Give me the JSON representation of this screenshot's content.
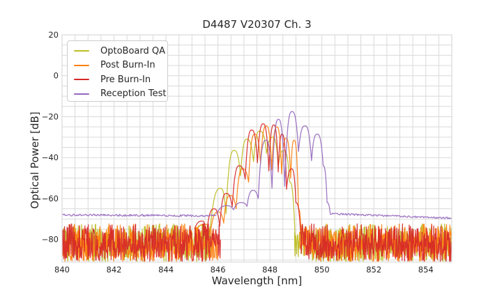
{
  "chart_data": {
    "type": "line",
    "title": "D4487 V20307 Ch. 3",
    "xlabel": "Wavelength [nm]",
    "ylabel": "Optical Power [dB]",
    "xlim": [
      840,
      855
    ],
    "ylim": [
      -91,
      20
    ],
    "x_major_ticks": [
      840,
      842,
      844,
      846,
      848,
      850,
      852,
      854
    ],
    "x_minor_step": 0.5,
    "y_major_ticks": [
      20,
      0,
      -20,
      -40,
      -60,
      -80
    ],
    "y_minor_step": 5,
    "grid": true,
    "grid_color": "#d9d9d9",
    "background": "#ffffff",
    "legend_position": "upper-left",
    "series": [
      {
        "name": "OptoBoard QA",
        "color": "#bcbd22",
        "segments": [
          {
            "type": "noise",
            "x0": 840,
            "x1": 845.75,
            "top": -74.5,
            "bottom": -91
          },
          {
            "type": "modes",
            "points": [
              [
                845.15,
                -76
              ],
              [
                845.38,
                -73
              ],
              [
                845.66,
                -81.5
              ],
              [
                846.1,
                -55
              ],
              [
                846.31,
                -67.5
              ],
              [
                846.62,
                -36.5
              ],
              [
                846.87,
                -49
              ],
              [
                847.11,
                -31
              ],
              [
                847.37,
                -42
              ],
              [
                847.61,
                -27
              ],
              [
                847.87,
                -38
              ],
              [
                848.11,
                -30
              ],
              [
                848.32,
                -44
              ],
              [
                848.54,
                -36.5
              ],
              [
                848.76,
                -52
              ],
              [
                848.97,
                -80
              ]
            ]
          },
          {
            "type": "noise",
            "x0": 848.95,
            "x1": 855,
            "top": -74.5,
            "bottom": -91
          }
        ]
      },
      {
        "name": "Post Burn-In",
        "color": "#ff7f0e",
        "segments": [
          {
            "type": "noise",
            "x0": 840,
            "x1": 846.0,
            "top": -74.5,
            "bottom": -91
          },
          {
            "type": "modes",
            "points": [
              [
                845.2,
                -75
              ],
              [
                845.5,
                -72.5
              ],
              [
                845.7,
                -78
              ],
              [
                846.0,
                -66.5
              ],
              [
                846.22,
                -72
              ],
              [
                846.47,
                -58.5
              ],
              [
                846.7,
                -65
              ],
              [
                846.95,
                -45.5
              ],
              [
                847.18,
                -52
              ],
              [
                847.42,
                -28.5
              ],
              [
                847.64,
                -43
              ],
              [
                847.86,
                -24.5
              ],
              [
                848.07,
                -46
              ],
              [
                848.27,
                -25
              ],
              [
                848.45,
                -48
              ],
              [
                848.62,
                -30.5
              ],
              [
                848.8,
                -50
              ],
              [
                848.93,
                -31.5
              ],
              [
                849.1,
                -65
              ],
              [
                849.2,
                -78
              ]
            ]
          },
          {
            "type": "noise",
            "x0": 849.15,
            "x1": 855,
            "top": -74.5,
            "bottom": -91
          }
        ]
      },
      {
        "name": "Pre Burn-In",
        "color": "#d62728",
        "segments": [
          {
            "type": "noise",
            "x0": 840,
            "x1": 846.1,
            "top": -74.5,
            "bottom": -91
          },
          {
            "type": "modes",
            "points": [
              [
                845.1,
                -75
              ],
              [
                845.39,
                -71
              ],
              [
                845.56,
                -77.5
              ],
              [
                845.85,
                -65
              ],
              [
                846.07,
                -73.5
              ],
              [
                846.32,
                -57.5
              ],
              [
                846.55,
                -64
              ],
              [
                846.82,
                -44
              ],
              [
                847.05,
                -50.5
              ],
              [
                847.3,
                -26.5
              ],
              [
                847.52,
                -42.5
              ],
              [
                847.74,
                -23.5
              ],
              [
                847.96,
                -46.5
              ],
              [
                848.15,
                -24
              ],
              [
                848.32,
                -47
              ],
              [
                848.47,
                -28.5
              ],
              [
                848.64,
                -55.5
              ],
              [
                848.84,
                -45.5
              ],
              [
                849.0,
                -62
              ],
              [
                849.18,
                -77
              ]
            ]
          },
          {
            "type": "noise",
            "x0": 849.2,
            "x1": 855,
            "top": -74.5,
            "bottom": -91
          }
        ]
      },
      {
        "name": "Reception Test",
        "color": "#9467bd",
        "segments": [
          {
            "type": "flat",
            "x0": 840,
            "x1": 845.95,
            "y0": -68.0,
            "y1": -68.4,
            "ripple": 1.0
          },
          {
            "type": "modes",
            "points": [
              [
                845.95,
                -67.5
              ],
              [
                846.35,
                -63.5
              ],
              [
                846.6,
                -65.5
              ],
              [
                846.9,
                -62
              ],
              [
                847.12,
                -63.8
              ],
              [
                847.35,
                -56
              ],
              [
                847.55,
                -60
              ],
              [
                847.85,
                -31.5
              ],
              [
                848.08,
                -55
              ],
              [
                848.33,
                -21.3
              ],
              [
                848.57,
                -54
              ],
              [
                848.85,
                -17.5
              ],
              [
                849.1,
                -37
              ],
              [
                849.35,
                -24.5
              ],
              [
                849.6,
                -41.5
              ],
              [
                849.82,
                -28.5
              ],
              [
                850.05,
                -44
              ],
              [
                850.2,
                -62
              ],
              [
                850.32,
                -67.3
              ]
            ]
          },
          {
            "type": "flat",
            "x0": 850.32,
            "x1": 855,
            "y0": -67.4,
            "y1": -69.6,
            "ripple": 0.9
          }
        ]
      }
    ]
  }
}
